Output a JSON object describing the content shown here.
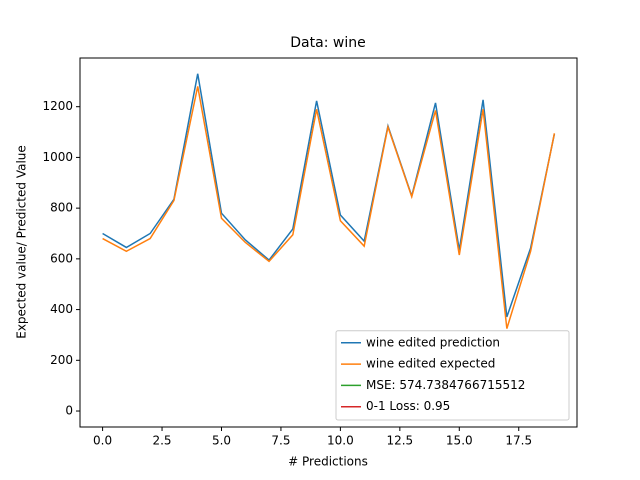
{
  "chart_data": {
    "type": "line",
    "title": "Data: wine",
    "xlabel": "# Predictions",
    "ylabel": "Expected value/ Predicted Value",
    "x": [
      0,
      1,
      2,
      3,
      4,
      5,
      6,
      7,
      8,
      9,
      10,
      11,
      12,
      13,
      14,
      15,
      16,
      17,
      18,
      19
    ],
    "series": [
      {
        "name": "wine edited prediction",
        "color": "#1f77b4",
        "values": [
          700,
          645,
          700,
          835,
          1330,
          780,
          675,
          595,
          718,
          1223,
          773,
          670,
          1124,
          848,
          1215,
          635,
          1227,
          371,
          643,
          1093
        ]
      },
      {
        "name": "wine edited expected",
        "color": "#ff7f0e",
        "values": [
          680,
          630,
          680,
          830,
          1280,
          760,
          665,
          590,
          695,
          1190,
          750,
          650,
          1120,
          845,
          1185,
          615,
          1190,
          325,
          630,
          1095
        ]
      },
      {
        "name": "MSE: 574.7384766715512",
        "color": "#2ca02c"
      },
      {
        "name": "0-1 Loss: 0.95",
        "color": "#d62728"
      }
    ],
    "xlim": [
      -0.95,
      19.95
    ],
    "xticks": [
      {
        "value": 0,
        "label": "0.0"
      },
      {
        "value": 2.5,
        "label": "2.5"
      },
      {
        "value": 5,
        "label": "5.0"
      },
      {
        "value": 7.5,
        "label": "7.5"
      },
      {
        "value": 10,
        "label": "10.0"
      },
      {
        "value": 12.5,
        "label": "12.5"
      },
      {
        "value": 15,
        "label": "15.0"
      },
      {
        "value": 17.5,
        "label": "17.5"
      }
    ],
    "ylim": [
      -63,
      1392
    ],
    "yticks": [
      0,
      200,
      400,
      600,
      800,
      1000,
      1200
    ],
    "legend": "lower right",
    "grid": false
  }
}
